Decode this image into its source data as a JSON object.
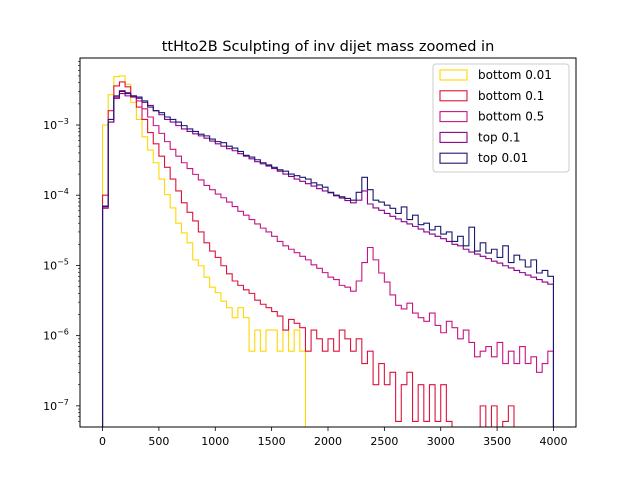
{
  "chart_data": {
    "type": "line",
    "drawstyle": "step",
    "title": "ttHto2B Sculpting of inv dijet mass zoomed in",
    "xlabel": "",
    "ylabel": "",
    "xlim": [
      -200,
      4200
    ],
    "ylim": [
      5e-08,
      0.009
    ],
    "yscale": "log",
    "grid": false,
    "legend_position": "top-right",
    "bin_width": 50,
    "x_ticks": [
      0,
      500,
      1000,
      1500,
      2000,
      2500,
      3000,
      3500,
      4000
    ],
    "x_tick_labels": [
      "0",
      "500",
      "1000",
      "1500",
      "2000",
      "2500",
      "3000",
      "3500",
      "4000"
    ],
    "y_ticks": [
      1e-07,
      1e-06,
      1e-05,
      0.0001,
      0.001
    ],
    "y_tick_labels": [
      [
        "10",
        "−7"
      ],
      [
        "10",
        "−6"
      ],
      [
        "10",
        "−5"
      ],
      [
        "10",
        "−4"
      ],
      [
        "10",
        "−3"
      ]
    ],
    "series": [
      {
        "name": "bottom 0.01",
        "color": "#ffd700",
        "values": [
          0.001,
          0.0027,
          0.0049,
          0.005,
          0.0038,
          0.0021,
          0.0012,
          0.00068,
          0.00044,
          0.00029,
          0.00017,
          0.000102,
          6.6e-05,
          4e-05,
          2.9e-05,
          2.1e-05,
          1.2e-05,
          9.9e-06,
          6.8e-06,
          4.9e-06,
          4.1e-06,
          3.1e-06,
          2.5e-06,
          1.8e-06,
          2.5e-06,
          1.8e-06,
          6e-07,
          1.2e-06,
          6e-07,
          1.2e-06,
          1.2e-06,
          6e-07,
          1.2e-06,
          6e-07,
          1.2e-06,
          6e-07,
          1e-08
        ]
      },
      {
        "name": "bottom 0.1",
        "color": "#dc143c",
        "values": [
          0.0001,
          0.0016,
          0.0036,
          0.0041,
          0.0035,
          0.0026,
          0.0018,
          0.0012,
          0.00078,
          0.00054,
          0.00036,
          0.00025,
          0.00017,
          0.000115,
          7.8e-05,
          5.7e-05,
          4.3e-05,
          3e-05,
          2.1e-05,
          1.6e-05,
          1.3e-05,
          9.9e-06,
          7.6e-06,
          6e-06,
          5.2e-06,
          4.5e-06,
          4e-06,
          3.2e-06,
          2.8e-06,
          2.5e-06,
          2.2e-06,
          1.9e-06,
          1.2e-06,
          1.7e-06,
          1.5e-06,
          1.3e-06,
          6e-07,
          1.2e-06,
          9e-07,
          6e-07,
          9e-07,
          6e-07,
          1.2e-06,
          9e-07,
          6e-07,
          9e-07,
          4e-07,
          6e-07,
          2e-07,
          4e-07,
          2e-07,
          3e-07,
          6e-08,
          2e-07,
          3e-07,
          6e-08,
          2e-07,
          6e-08,
          2e-07,
          6e-08,
          2e-07,
          6e-08,
          3e-08,
          3e-08,
          3e-08,
          3e-08,
          3e-08,
          1e-07,
          3e-08,
          1e-07,
          3e-08,
          6e-08,
          1e-07,
          3e-08,
          3e-08,
          3e-08,
          3e-08,
          3e-08,
          3e-08,
          3e-08
        ]
      },
      {
        "name": "bottom 0.5",
        "color": "#c71585",
        "values": [
          6.5e-05,
          0.0011,
          0.0025,
          0.0031,
          0.0029,
          0.0026,
          0.0022,
          0.0017,
          0.0013,
          0.00098,
          0.00076,
          0.00058,
          0.00045,
          0.00036,
          0.00029,
          0.00024,
          0.000198,
          0.000165,
          0.000138,
          0.00012,
          0.000104,
          9.2e-05,
          8e-05,
          6.9e-05,
          5.9e-05,
          5.2e-05,
          4.5e-05,
          3.9e-05,
          3.4e-05,
          3e-05,
          2.6e-05,
          2.2e-05,
          1.9e-05,
          1.7e-05,
          1.52e-05,
          1.35e-05,
          1.2e-05,
          1.02e-05,
          9.1e-06,
          7.9e-06,
          6.8e-06,
          6.3e-06,
          5.2e-06,
          4.9e-06,
          4.3e-06,
          6e-06,
          1.1e-05,
          1.8e-05,
          1.2e-05,
          7.8e-06,
          5.8e-06,
          3.8e-06,
          2.7e-06,
          2.4e-06,
          2.9e-06,
          2.1e-06,
          1.8e-06,
          1.6e-06,
          2.1e-06,
          1.4e-06,
          1.1e-06,
          1.6e-06,
          1.3e-06,
          9e-07,
          1.2e-06,
          8e-07,
          5e-07,
          6e-07,
          7e-07,
          5e-07,
          8e-07,
          4e-07,
          6e-07,
          4e-07,
          7e-07,
          4e-07,
          5e-07,
          3e-07,
          4e-07,
          6e-07
        ]
      },
      {
        "name": "top 0.1",
        "color": "#8b008b",
        "values": [
          6.8e-05,
          0.0011,
          0.0024,
          0.0028,
          0.0026,
          0.0025,
          0.0024,
          0.0021,
          0.0019,
          0.0016,
          0.0014,
          0.0012,
          0.0011,
          0.00098,
          0.00088,
          0.00081,
          0.00075,
          0.0007,
          0.00065,
          0.00059,
          0.00054,
          0.0005,
          0.00046,
          0.00043,
          0.00039,
          0.00036,
          0.00033,
          0.0003,
          0.00028,
          0.00026,
          0.00024,
          0.00022,
          0.0002,
          0.000185,
          0.00017,
          0.000158,
          0.000146,
          0.000135,
          0.000124,
          0.000115,
          0.000108,
          9.8e-05,
          9.1e-05,
          8.4e-05,
          7.8e-05,
          8.5e-05,
          0.000115,
          7.5e-05,
          6.6e-05,
          6.1e-05,
          5.5e-05,
          5e-05,
          4.6e-05,
          4.2e-05,
          3.9e-05,
          3.6e-05,
          3.3e-05,
          3e-05,
          2.8e-05,
          2.6e-05,
          2.4e-05,
          2.2e-05,
          2e-05,
          1.9e-05,
          1.7e-05,
          1.55e-05,
          1.45e-05,
          1.35e-05,
          1.25e-05,
          1.15e-05,
          1.08e-05,
          9.9e-06,
          9.2e-06,
          8.5e-06,
          7.9e-06,
          7.3e-06,
          6.8e-06,
          6.3e-06,
          5.8e-06,
          5.4e-06
        ]
      },
      {
        "name": "top 0.01",
        "color": "#191970",
        "values": [
          7e-05,
          0.0012,
          0.0026,
          0.003,
          0.0028,
          0.0026,
          0.0025,
          0.0022,
          0.0018,
          0.0016,
          0.0015,
          0.0013,
          0.0012,
          0.0011,
          0.00098,
          0.00088,
          0.00081,
          0.00074,
          0.0007,
          0.00063,
          0.00058,
          0.00056,
          0.0005,
          0.00047,
          0.00042,
          0.00037,
          0.00035,
          0.00032,
          0.00029,
          0.00027,
          0.00025,
          0.00023,
          0.00022,
          0.0002,
          0.00019,
          0.00018,
          0.00017,
          0.00015,
          0.00014,
          0.00013,
          0.00011,
          0.0001,
          9.5e-05,
          9e-05,
          8.5e-05,
          0.00011,
          0.00018,
          0.00012,
          8.5e-05,
          8e-05,
          7.2e-05,
          6.5e-05,
          5.5e-05,
          6.8e-05,
          4.5e-05,
          5.2e-05,
          3.8e-05,
          4e-05,
          3.2e-05,
          3.6e-05,
          2.8e-05,
          3e-05,
          2.2e-05,
          2.6e-05,
          1.9e-05,
          3.5e-05,
          1.6e-05,
          2.1e-05,
          1.5e-05,
          1.7e-05,
          1.3e-05,
          1.9e-05,
          1.1e-05,
          1.4e-05,
          1.2e-05,
          9.5e-06,
          1.2e-05,
          7.8e-06,
          8.5e-06,
          7e-06
        ]
      }
    ]
  }
}
